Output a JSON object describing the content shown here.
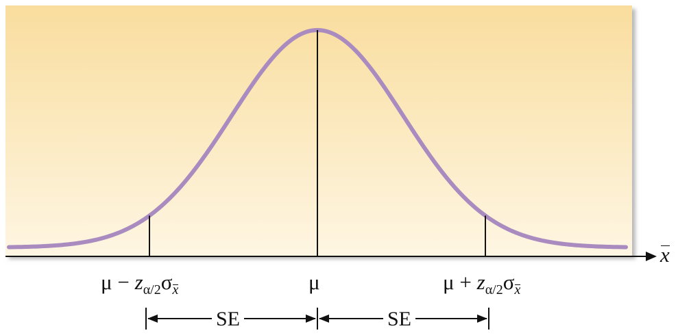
{
  "labels": {
    "mu": "μ",
    "minus_sign": "−",
    "plus_sign": "+",
    "z": "z",
    "alpha_over_2": "α/2",
    "sigma": "σ",
    "x_var": "x",
    "x_axis": "x",
    "se": "SE"
  },
  "curve": {
    "mean": 0,
    "sd": 1,
    "range": [
      -3.6,
      3.6
    ],
    "boundary_z": 1.96
  },
  "colors": {
    "curve": "#a98bc0",
    "background_top": "#f9dd9e",
    "background_bottom": "#fef6e3",
    "axis": "#111111"
  }
}
